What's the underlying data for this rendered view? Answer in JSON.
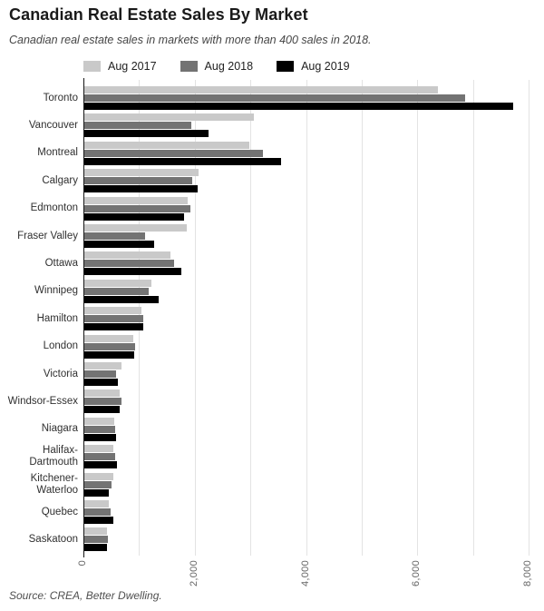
{
  "header": {
    "title": "Canadian Real Estate Sales By Market",
    "subtitle": "Canadian real estate sales in markets with more than 400 sales in 2018."
  },
  "chart_data": {
    "type": "bar",
    "orientation": "horizontal",
    "title": "Canadian Real Estate Sales By Market",
    "subtitle": "Canadian real estate sales in markets with more than 400 sales in 2018.",
    "categories": [
      "Toronto",
      "Vancouver",
      "Montreal",
      "Calgary",
      "Edmonton",
      "Fraser Valley",
      "Ottawa",
      "Winnipeg",
      "Hamilton",
      "London",
      "Victoria",
      "Windsor-Essex",
      "Niagara",
      "Halifax-Dartmouth",
      "Kitchener-Waterloo",
      "Quebec",
      "Saskatoon"
    ],
    "series": [
      {
        "name": "Aug 2017",
        "color": "#c9c9c9",
        "values": [
          6357,
          3043,
          2960,
          2050,
          1860,
          1840,
          1550,
          1200,
          1020,
          885,
          675,
          640,
          530,
          520,
          525,
          440,
          415
        ]
      },
      {
        "name": "Aug 2018",
        "color": "#737373",
        "values": [
          6839,
          1929,
          3210,
          1940,
          1900,
          1090,
          1610,
          1155,
          1065,
          920,
          575,
          670,
          560,
          550,
          490,
          465,
          430
        ]
      },
      {
        "name": "Aug 2019",
        "color": "#000000",
        "values": [
          7711,
          2231,
          3530,
          2040,
          1790,
          1250,
          1740,
          1335,
          1060,
          895,
          605,
          640,
          575,
          585,
          440,
          515,
          400
        ]
      }
    ],
    "xlabel": "",
    "ylabel": "",
    "xlim": [
      0,
      8000
    ],
    "x_ticks": [
      0,
      2000,
      4000,
      6000,
      8000
    ],
    "x_tick_labels": [
      "0",
      "2,000",
      "4,000",
      "6,000",
      "8,000"
    ],
    "minor_gridlines_every": 1000,
    "grid": "vertical",
    "legend_position": "top",
    "tick_label_rotation": "vertical"
  },
  "footer": {
    "source": "Source: CREA, Better Dwelling."
  }
}
